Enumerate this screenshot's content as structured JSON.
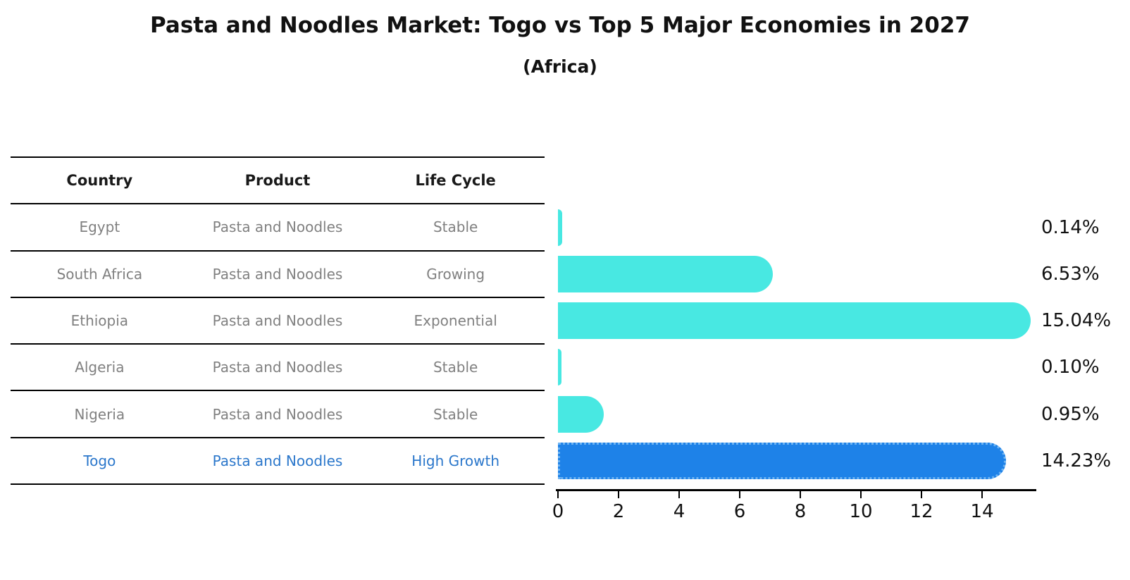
{
  "title": "Pasta and Noodles Market: Togo vs Top 5 Major Economies in 2027",
  "subtitle": "(Africa)",
  "table": {
    "headers": [
      "Country",
      "Product",
      "Life Cycle"
    ],
    "rows": [
      {
        "country": "Egypt",
        "product": "Pasta and Noodles",
        "life_cycle": "Stable",
        "highlight": false
      },
      {
        "country": "South Africa",
        "product": "Pasta and Noodles",
        "life_cycle": "Growing",
        "highlight": false
      },
      {
        "country": "Ethiopia",
        "product": "Pasta and Noodles",
        "life_cycle": "Exponential",
        "highlight": false
      },
      {
        "country": "Algeria",
        "product": "Pasta and Noodles",
        "life_cycle": "Stable",
        "highlight": false
      },
      {
        "country": "Nigeria",
        "product": "Pasta and Noodles",
        "life_cycle": "Stable",
        "highlight": false
      },
      {
        "country": "Togo",
        "product": "Pasta and Noodles",
        "life_cycle": "High Growth",
        "highlight": true
      }
    ]
  },
  "chart_data": {
    "type": "bar",
    "orientation": "horizontal",
    "title": "Pasta and Noodles Market: Togo vs Top 5 Major Economies in 2027",
    "subtitle": "(Africa)",
    "categories": [
      "Egypt",
      "South Africa",
      "Ethiopia",
      "Algeria",
      "Nigeria",
      "Togo"
    ],
    "values": [
      0.14,
      6.53,
      15.04,
      0.1,
      0.95,
      14.23
    ],
    "value_labels": [
      "0.14%",
      "6.53%",
      "15.04%",
      "0.10%",
      "0.95%",
      "14.23%"
    ],
    "x_ticks": [
      0,
      2,
      4,
      6,
      8,
      10,
      12,
      14
    ],
    "xlim": [
      0,
      15.8
    ],
    "grid": false,
    "legend": "none",
    "highlight_index": 5,
    "colors": {
      "bar": "#48E8E2",
      "highlight_bar": "#1E82E8",
      "highlight_bar_edge": "#6FB4F2",
      "value_label_text": "#111111",
      "table_text": "#808080",
      "table_header_text": "#1a1a1a",
      "highlight_text": "#2b77cb",
      "axis": "#000000"
    }
  }
}
